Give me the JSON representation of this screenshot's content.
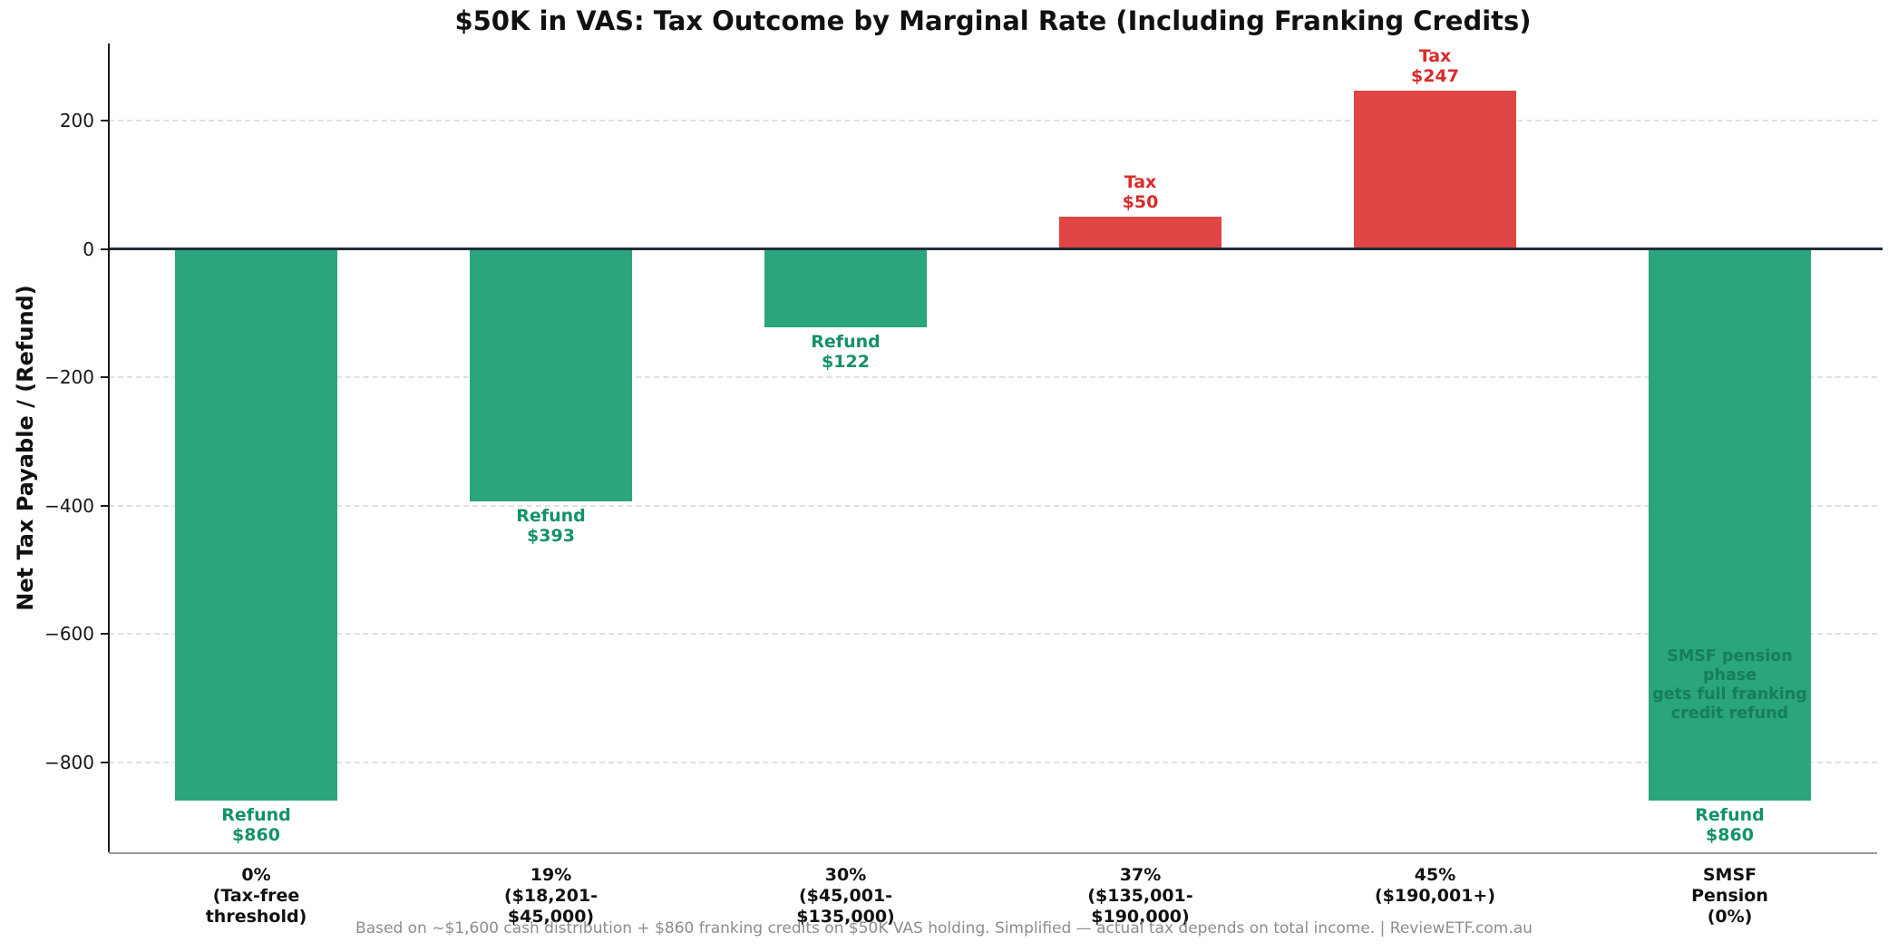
{
  "title": "$50K in VAS: Tax Outcome by Marginal Rate (Including Franking Credits)",
  "ylabel": "Net Tax Payable / (Refund)",
  "footer": "Based on ~$1,600 cash distribution + $860 franking credits on $50K VAS holding. Simplified — actual tax depends on total income. | ReviewETF.com.au",
  "colors": {
    "refund_bar": "#2aa57e",
    "tax_bar": "#e04545",
    "refund_label": "#13916a",
    "tax_label": "#d92b2b",
    "annotation": "#177d5d",
    "zero_line": "#1f2d3d",
    "grid": "#e0e0e0",
    "axis_text": "#161616",
    "footer_text": "#8d8d8d"
  },
  "chart_data": {
    "type": "bar",
    "title": "$50K in VAS: Tax Outcome by Marginal Rate (Including Franking Credits)",
    "xlabel": "",
    "ylabel": "Net Tax Payable / (Refund)",
    "categories": [
      [
        "0%",
        "(Tax-free",
        "threshold)"
      ],
      [
        "19%",
        "($18,201-",
        "$45,000)"
      ],
      [
        "30%",
        "($45,001-",
        "$135,000)"
      ],
      [
        "37%",
        "($135,001-",
        "$190,000)"
      ],
      [
        "45%",
        "($190,001+)"
      ],
      [
        "SMSF",
        "Pension",
        "(0%)"
      ]
    ],
    "values": [
      -860,
      -393,
      -122,
      50,
      247,
      -860
    ],
    "bar_labels": [
      [
        "Refund",
        "$860"
      ],
      [
        "Refund",
        "$393"
      ],
      [
        "Refund",
        "$122"
      ],
      [
        "Tax",
        "$50"
      ],
      [
        "Tax",
        "$247"
      ],
      [
        "Refund",
        "$860"
      ]
    ],
    "annotation": {
      "bar_index": 5,
      "at_value": -680,
      "lines": [
        "SMSF pension phase",
        "gets full franking",
        "credit refund"
      ]
    },
    "yticks": [
      200,
      0,
      -200,
      -400,
      -600,
      -800
    ],
    "ylim": [
      -940,
      320
    ],
    "grid": "horizontal-dashed",
    "zero_line": true,
    "legend": null
  }
}
